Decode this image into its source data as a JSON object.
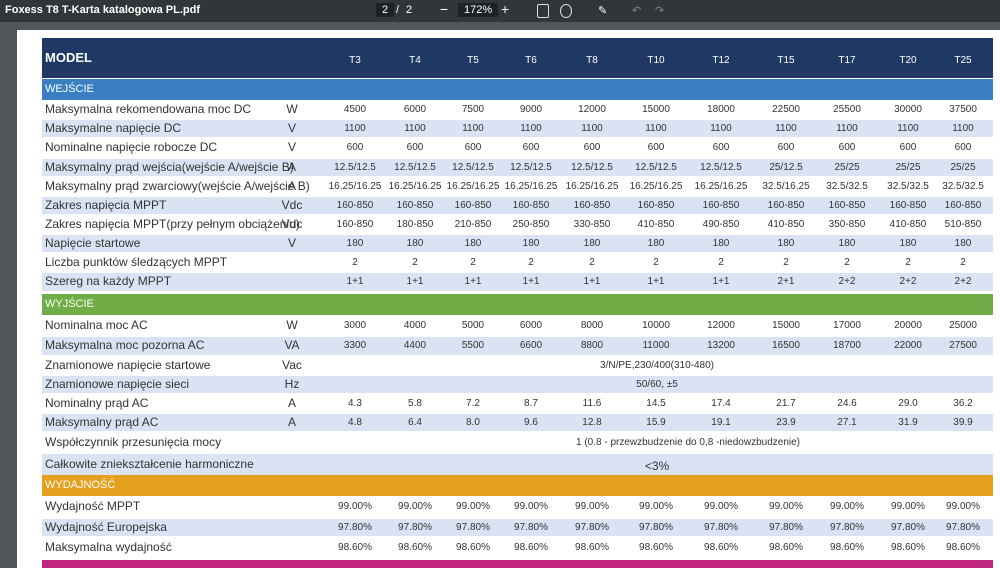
{
  "viewer": {
    "file_title": "Foxess T8 T-Karta katalogowa PL.pdf",
    "page": "2",
    "page_sep": "/",
    "page_total": "2",
    "zoom": "172%"
  },
  "table": {
    "header": {
      "label": "MODEL",
      "models": [
        "T3",
        "T4",
        "T5",
        "T6",
        "T8",
        "T10",
        "T12",
        "T15",
        "T17",
        "T20",
        "T25"
      ]
    },
    "sections": [
      {
        "title": "WEJŚCIE",
        "rows": [
          {
            "label": "Maksymalna rekomendowana moc DC",
            "unit": "W",
            "values": [
              "4500",
              "6000",
              "7500",
              "9000",
              "12000",
              "15000",
              "18000",
              "22500",
              "25500",
              "30000",
              "37500"
            ]
          },
          {
            "label": "Maksymalne napięcie DC",
            "unit": "V",
            "values": [
              "1100",
              "1100",
              "1100",
              "1100",
              "1100",
              "1100",
              "1100",
              "1100",
              "1100",
              "1100",
              "1100"
            ]
          },
          {
            "label": "Nominalne napięcie robocze DC",
            "unit": "V",
            "values": [
              "600",
              "600",
              "600",
              "600",
              "600",
              "600",
              "600",
              "600",
              "600",
              "600",
              "600"
            ]
          },
          {
            "label": "Maksymalny prąd wejścia(wejście A/wejście B)",
            "unit": "A",
            "values": [
              "12.5/12.5",
              "12.5/12.5",
              "12.5/12.5",
              "12.5/12.5",
              "12.5/12.5",
              "12.5/12.5",
              "12.5/12.5",
              "25/12.5",
              "25/25",
              "25/25",
              "25/25"
            ]
          },
          {
            "label": "Maksymalny prąd zwarciowy(wejście A/wejście B)",
            "unit": "A",
            "values": [
              "16.25/16.25",
              "16.25/16.25",
              "16.25/16.25",
              "16.25/16.25",
              "16.25/16.25",
              "16.25/16.25",
              "16.25/16.25",
              "32.5/16.25",
              "32.5/32.5",
              "32.5/32.5",
              "32.5/32.5"
            ]
          },
          {
            "label": "Zakres napięcia MPPT",
            "unit": "Vdc",
            "values": [
              "160-850",
              "160-850",
              "160-850",
              "160-850",
              "160-850",
              "160-850",
              "160-850",
              "160-850",
              "160-850",
              "160-850",
              "160-850"
            ]
          },
          {
            "label": "Zakres napięcia MPPT(przy pełnym obciążeniu)",
            "unit": "Vdc",
            "values": [
              "160-850",
              "180-850",
              "210-850",
              "250-850",
              "330-850",
              "410-850",
              "490-850",
              "410-850",
              "350-850",
              "410-850",
              "510-850"
            ]
          },
          {
            "label": "Napięcie startowe",
            "unit": "V",
            "values": [
              "180",
              "180",
              "180",
              "180",
              "180",
              "180",
              "180",
              "180",
              "180",
              "180",
              "180"
            ]
          },
          {
            "label": "Liczba punktów śledzących MPPT",
            "values": [
              "2",
              "2",
              "2",
              "2",
              "2",
              "2",
              "2",
              "2",
              "2",
              "2",
              "2"
            ]
          },
          {
            "label": "Szereg na każdy MPPT",
            "values": [
              "1+1",
              "1+1",
              "1+1",
              "1+1",
              "1+1",
              "1+1",
              "1+1",
              "2+1",
              "2+2",
              "2+2",
              "2+2"
            ]
          }
        ]
      },
      {
        "title": "WYJŚCIE",
        "rows": [
          {
            "label": "Nominalna moc AC",
            "unit": "W",
            "values": [
              "3000",
              "4000",
              "5000",
              "6000",
              "8000",
              "10000",
              "12000",
              "15000",
              "17000",
              "20000",
              "25000"
            ]
          },
          {
            "label": "Maksymalna moc pozorna AC",
            "unit": "VA",
            "values": [
              "3300",
              "4400",
              "5500",
              "6600",
              "8800",
              "11000",
              "13200",
              "16500",
              "18700",
              "22000",
              "27500"
            ]
          },
          {
            "label": "Znamionowe napięcie startowe",
            "unit": "Vac",
            "span": "3/N/PE,230/400(310-480)"
          },
          {
            "label": "Znamionowe napięcie sieci",
            "unit": "Hz",
            "span": "50/60, ±5"
          },
          {
            "label": "Nominalny prąd AC",
            "unit": "A",
            "values": [
              "4.3",
              "5.8",
              "7.2",
              "8.7",
              "11.6",
              "14.5",
              "17.4",
              "21.7",
              "24.6",
              "29.0",
              "36.2"
            ]
          },
          {
            "label": "Maksymalny prąd AC",
            "unit": "A",
            "values": [
              "4.8",
              "6.4",
              "8.0",
              "9.6",
              "12.8",
              "15.9",
              "19.1",
              "23.9",
              "27.1",
              "31.9",
              "39.9"
            ]
          },
          {
            "label": "Współczynnik przesunięcia mocy",
            "span": "1 (0.8 - przewzbudzenie do 0,8 -niedowzbudzenie)"
          },
          {
            "label": "Całkowite zniekształcenie harmoniczne",
            "span": "<3%"
          }
        ]
      },
      {
        "title": "WYDAJNOŚĆ",
        "rows": [
          {
            "label": "Wydajność MPPT",
            "values": [
              "99.00%",
              "99.00%",
              "99.00%",
              "99.00%",
              "99.00%",
              "99.00%",
              "99.00%",
              "99.00%",
              "99.00%",
              "99.00%",
              "99.00%"
            ]
          },
          {
            "label": "Wydajność Europejska",
            "values": [
              "97.80%",
              "97.80%",
              "97.80%",
              "97.80%",
              "97.80%",
              "97.80%",
              "97.80%",
              "97.80%",
              "97.80%",
              "97.80%",
              "97.80%"
            ]
          },
          {
            "label": "Maksymalna wydajność",
            "values": [
              "98.60%",
              "98.60%",
              "98.60%",
              "98.60%",
              "98.60%",
              "98.60%",
              "98.60%",
              "98.60%",
              "98.60%",
              "98.60%",
              "98.60%"
            ]
          }
        ]
      }
    ]
  }
}
